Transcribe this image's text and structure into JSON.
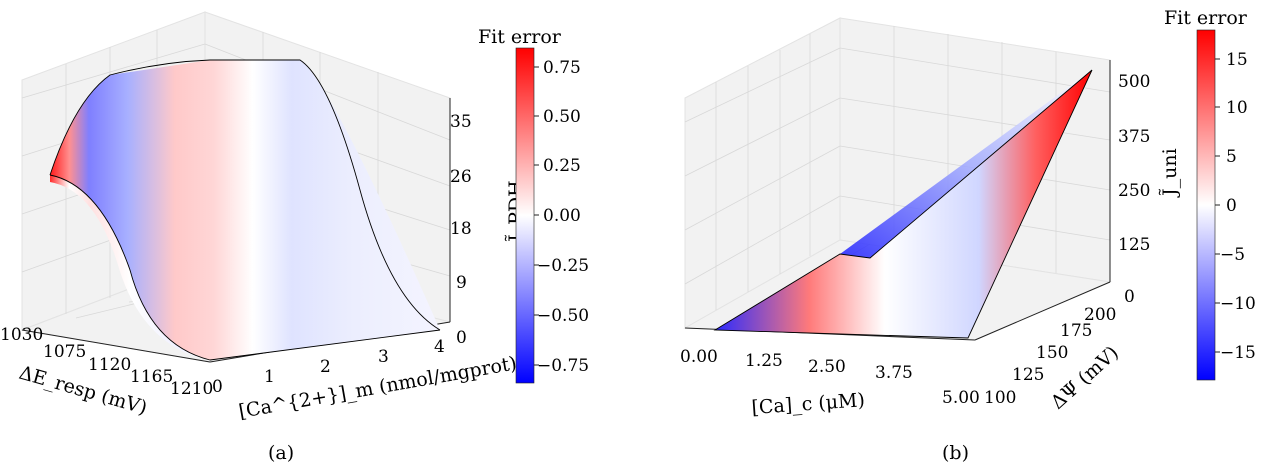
{
  "chart_data": [
    {
      "type": "surface",
      "panel_label": "(a)",
      "xlabel": "ΔE_resp (mV)",
      "ylabel": "[Ca^{2+}]_m (nmol/mgprot)",
      "zlabel": "J̃_PDH",
      "x_ticks": [
        "1030",
        "1075",
        "1120",
        "1165",
        "1210"
      ],
      "y_ticks": [
        "0",
        "1",
        "2",
        "3",
        "4"
      ],
      "z_ticks": [
        "0",
        "9",
        "18",
        "26",
        "35"
      ],
      "xlim": [
        1030,
        1210
      ],
      "ylim": [
        0,
        4
      ],
      "zlim": [
        0,
        35
      ],
      "colorbar": {
        "title": "Fit error",
        "ticks": [
          "0.75",
          "0.50",
          "0.25",
          "0.00",
          "−0.25",
          "−0.50",
          "−0.75"
        ],
        "range": [
          -0.85,
          0.85
        ],
        "colors": [
          "#0000ff",
          "#ffffff",
          "#ff0000"
        ]
      }
    },
    {
      "type": "surface",
      "panel_label": "(b)",
      "xlabel": "[Ca]_c (μM)",
      "ylabel": "ΔΨ (mV)",
      "zlabel": "J̃_uni",
      "x_ticks": [
        "0.00",
        "1.25",
        "2.50",
        "3.75",
        "5.00"
      ],
      "y_ticks": [
        "100",
        "125",
        "150",
        "175",
        "200"
      ],
      "z_ticks": [
        "0",
        "125",
        "250",
        "375",
        "500"
      ],
      "xlim": [
        0,
        5
      ],
      "ylim": [
        100,
        200
      ],
      "zlim": [
        0,
        520
      ],
      "colorbar": {
        "title": "Fit error",
        "ticks": [
          "15",
          "10",
          "5",
          "0",
          "−5",
          "−10",
          "−15"
        ],
        "range": [
          -18,
          18
        ],
        "colors": [
          "#0000ff",
          "#ffffff",
          "#ff0000"
        ]
      }
    }
  ]
}
